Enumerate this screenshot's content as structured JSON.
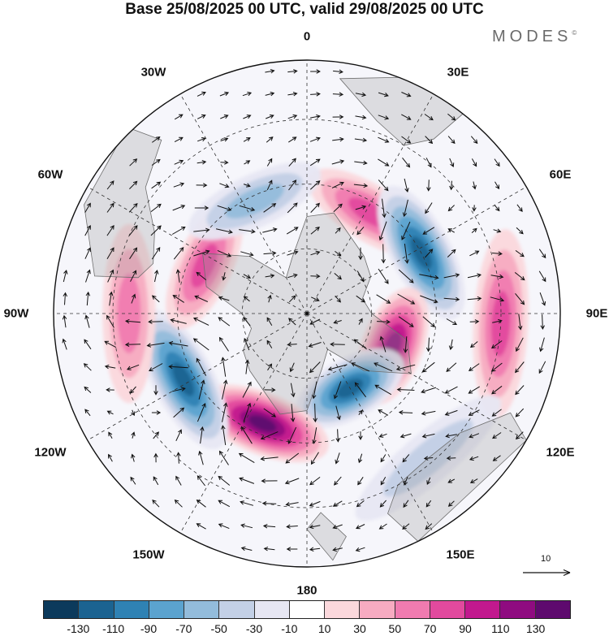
{
  "title": "Base 25/08/2025 00 UTC, valid 29/08/2025 00 UTC",
  "brand": {
    "name": "MODES",
    "mark": "©"
  },
  "longitude_labels": [
    "0",
    "30E",
    "60E",
    "90E",
    "120E",
    "150E",
    "180",
    "150W",
    "120W",
    "90W",
    "60W",
    "30W"
  ],
  "reference_vector": {
    "label": "10"
  },
  "colorbar": {
    "colors": [
      "#0c3a5c",
      "#1b6391",
      "#2f82b4",
      "#5ba3cf",
      "#93bcdb",
      "#c3d0e6",
      "#e7e7f3",
      "#ffffff",
      "#fbd8dc",
      "#f7abc1",
      "#f07bb0",
      "#e24a9e",
      "#c2198e",
      "#8f0b80",
      "#5e0a6e"
    ],
    "tick_labels": [
      "-130",
      "-110",
      "-90",
      "-70",
      "-50",
      "-30",
      "-10",
      "10",
      "30",
      "50",
      "70",
      "90",
      "110",
      "130"
    ]
  },
  "anomaly_centers": [
    {
      "lon": 32,
      "colat": 22,
      "value": 80
    },
    {
      "lon": 62,
      "colat": 24,
      "value": -120
    },
    {
      "lon": 93,
      "colat": 36,
      "value": 70
    },
    {
      "lon": 111,
      "colat": 17,
      "value": 125
    },
    {
      "lon": 150,
      "colat": 16,
      "value": -120
    },
    {
      "lon": -158,
      "colat": 22,
      "value": 130
    },
    {
      "lon": -118,
      "colat": 26,
      "value": -125
    },
    {
      "lon": -90,
      "colat": 33,
      "value": 55
    },
    {
      "lon": -65,
      "colat": 21,
      "value": 80
    },
    {
      "lon": -25,
      "colat": 23,
      "value": -55
    },
    {
      "lon": 140,
      "colat": 35,
      "value": -30
    }
  ]
}
